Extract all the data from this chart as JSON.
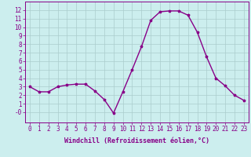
{
  "x": [
    0,
    1,
    2,
    3,
    4,
    5,
    6,
    7,
    8,
    9,
    10,
    11,
    12,
    13,
    14,
    15,
    16,
    17,
    18,
    19,
    20,
    21,
    22,
    23
  ],
  "y": [
    3.0,
    2.4,
    2.4,
    3.0,
    3.2,
    3.3,
    3.3,
    2.5,
    1.5,
    -0.1,
    2.4,
    5.0,
    7.7,
    10.8,
    11.8,
    11.9,
    11.9,
    11.4,
    9.4,
    6.5,
    4.0,
    3.1,
    2.0,
    1.4
  ],
  "line_color": "#880088",
  "marker": "*",
  "marker_size": 2.5,
  "bg_color": "#cceeee",
  "grid_color": "#aacccc",
  "axis_color": "#880088",
  "xlabel": "Windchill (Refroidissement éolien,°C)",
  "xlim": [
    -0.5,
    23.5
  ],
  "ylim": [
    -1.2,
    13
  ],
  "yticks": [
    0,
    1,
    2,
    3,
    4,
    5,
    6,
    7,
    8,
    9,
    10,
    11,
    12
  ],
  "ytick_labels": [
    "-0",
    "1",
    "2",
    "3",
    "4",
    "5",
    "6",
    "7",
    "8",
    "9",
    "10",
    "11",
    "12"
  ],
  "xticks": [
    0,
    1,
    2,
    3,
    4,
    5,
    6,
    7,
    8,
    9,
    10,
    11,
    12,
    13,
    14,
    15,
    16,
    17,
    18,
    19,
    20,
    21,
    22,
    23
  ],
  "font_size": 5.5,
  "xlabel_fontsize": 6.0,
  "linewidth": 1.0
}
